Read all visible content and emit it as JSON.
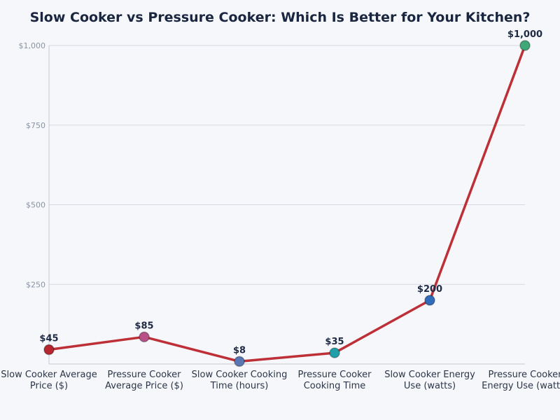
{
  "chart_data": {
    "type": "line",
    "title": "Slow Cooker vs Pressure Cooker: Which Is Better for Your Kitchen?",
    "categories": [
      [
        "Slow Cooker Average",
        "Price ($)"
      ],
      [
        "Pressure Cooker",
        "Average Price ($)"
      ],
      [
        "Slow Cooker Cooking",
        "Time (hours)"
      ],
      [
        "Pressure Cooker",
        "Cooking Time"
      ],
      [
        "Slow Cooker Energy",
        "Use (watts)"
      ],
      [
        "Pressure Cooker",
        "Energy Use (watts)"
      ]
    ],
    "values": [
      45,
      85,
      8,
      35,
      200,
      1000
    ],
    "data_labels": [
      "$45",
      "$85",
      "$8",
      "$35",
      "$200",
      "$1,000"
    ],
    "point_colors": [
      "#b5262f",
      "#b84f86",
      "#5b77b3",
      "#1fa0a8",
      "#2f6dbb",
      "#3ea877"
    ],
    "line_color": "#be3038",
    "yticks": [
      250,
      500,
      750,
      1000
    ],
    "ytick_labels": [
      "$250",
      "$500",
      "$750",
      "$1,000"
    ],
    "ylim": [
      0,
      1000
    ],
    "grid": true,
    "xlabel": "",
    "ylabel": ""
  }
}
